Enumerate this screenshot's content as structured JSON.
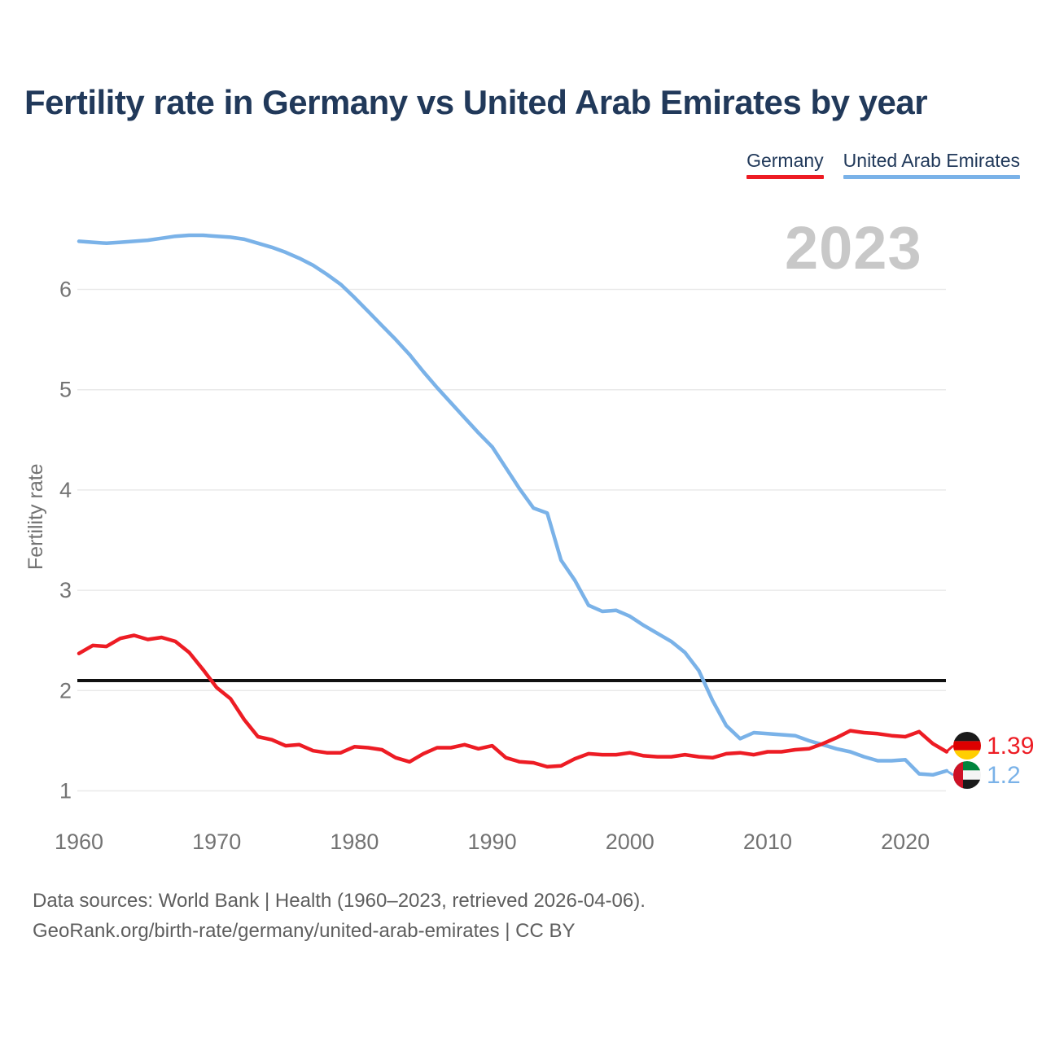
{
  "title": "Fertility rate in Germany vs United Arab Emirates by year",
  "watermark": "2023",
  "legend": [
    {
      "label": "Germany",
      "color": "#ed1c24"
    },
    {
      "label": "United Arab Emirates",
      "color": "#7ab2e8"
    }
  ],
  "y_axis": {
    "label": "Fertility rate",
    "ticks": [
      6,
      5,
      4,
      3,
      2,
      1
    ]
  },
  "x_axis": {
    "ticks": [
      1960,
      1970,
      1980,
      1990,
      2000,
      2010,
      2020
    ]
  },
  "reference_line": {
    "value": 2.1,
    "color": "#111111"
  },
  "end_labels": {
    "germany": {
      "value": "1.39",
      "flag": "germany-flag"
    },
    "uae": {
      "value": "1.2",
      "flag": "uae-flag"
    }
  },
  "footer": {
    "line1": "Data sources: World Bank | Health (1960–2023, retrieved 2026-04-06).",
    "line2": "GeoRank.org/birth-rate/germany/united-arab-emirates | CC BY"
  },
  "chart_data": {
    "type": "line",
    "title": "Fertility rate in Germany vs United Arab Emirates by year",
    "xlabel": "",
    "ylabel": "Fertility rate",
    "ylim": [
      1,
      6.6
    ],
    "xlim": [
      1960,
      2023
    ],
    "grid": "horizontal",
    "legend_position": "top-right",
    "annotations": [
      "black horizontal reference line at 2.1 (replacement level)",
      "large gray year watermark 2023"
    ],
    "x": [
      1960,
      1961,
      1962,
      1963,
      1964,
      1965,
      1966,
      1967,
      1968,
      1969,
      1970,
      1971,
      1972,
      1973,
      1974,
      1975,
      1976,
      1977,
      1978,
      1979,
      1980,
      1981,
      1982,
      1983,
      1984,
      1985,
      1986,
      1987,
      1988,
      1989,
      1990,
      1991,
      1992,
      1993,
      1994,
      1995,
      1996,
      1997,
      1998,
      1999,
      2000,
      2001,
      2002,
      2003,
      2004,
      2005,
      2006,
      2007,
      2008,
      2009,
      2010,
      2011,
      2012,
      2013,
      2014,
      2015,
      2016,
      2017,
      2018,
      2019,
      2020,
      2021,
      2022,
      2023
    ],
    "series": [
      {
        "name": "Germany",
        "color": "#ed1c24",
        "end_value": 1.39,
        "values": [
          2.37,
          2.45,
          2.44,
          2.52,
          2.55,
          2.51,
          2.53,
          2.49,
          2.38,
          2.21,
          2.03,
          1.92,
          1.71,
          1.54,
          1.51,
          1.45,
          1.46,
          1.4,
          1.38,
          1.38,
          1.44,
          1.43,
          1.41,
          1.33,
          1.29,
          1.37,
          1.43,
          1.43,
          1.46,
          1.42,
          1.45,
          1.33,
          1.29,
          1.28,
          1.24,
          1.25,
          1.32,
          1.37,
          1.36,
          1.36,
          1.38,
          1.35,
          1.34,
          1.34,
          1.36,
          1.34,
          1.33,
          1.37,
          1.38,
          1.36,
          1.39,
          1.39,
          1.41,
          1.42,
          1.47,
          1.53,
          1.6,
          1.58,
          1.57,
          1.55,
          1.54,
          1.59,
          1.47,
          1.39
        ]
      },
      {
        "name": "United Arab Emirates",
        "color": "#7ab2e8",
        "end_value": 1.2,
        "values": [
          6.48,
          6.47,
          6.46,
          6.47,
          6.48,
          6.49,
          6.51,
          6.53,
          6.54,
          6.54,
          6.53,
          6.52,
          6.5,
          6.46,
          6.42,
          6.37,
          6.31,
          6.24,
          6.15,
          6.05,
          5.92,
          5.78,
          5.64,
          5.5,
          5.35,
          5.18,
          5.02,
          4.87,
          4.72,
          4.57,
          4.43,
          4.22,
          4.01,
          3.82,
          3.77,
          3.3,
          3.1,
          2.85,
          2.79,
          2.8,
          2.74,
          2.65,
          2.57,
          2.49,
          2.38,
          2.2,
          1.9,
          1.65,
          1.52,
          1.58,
          1.57,
          1.56,
          1.55,
          1.5,
          1.46,
          1.42,
          1.39,
          1.34,
          1.3,
          1.3,
          1.31,
          1.17,
          1.16,
          1.2
        ]
      }
    ]
  }
}
